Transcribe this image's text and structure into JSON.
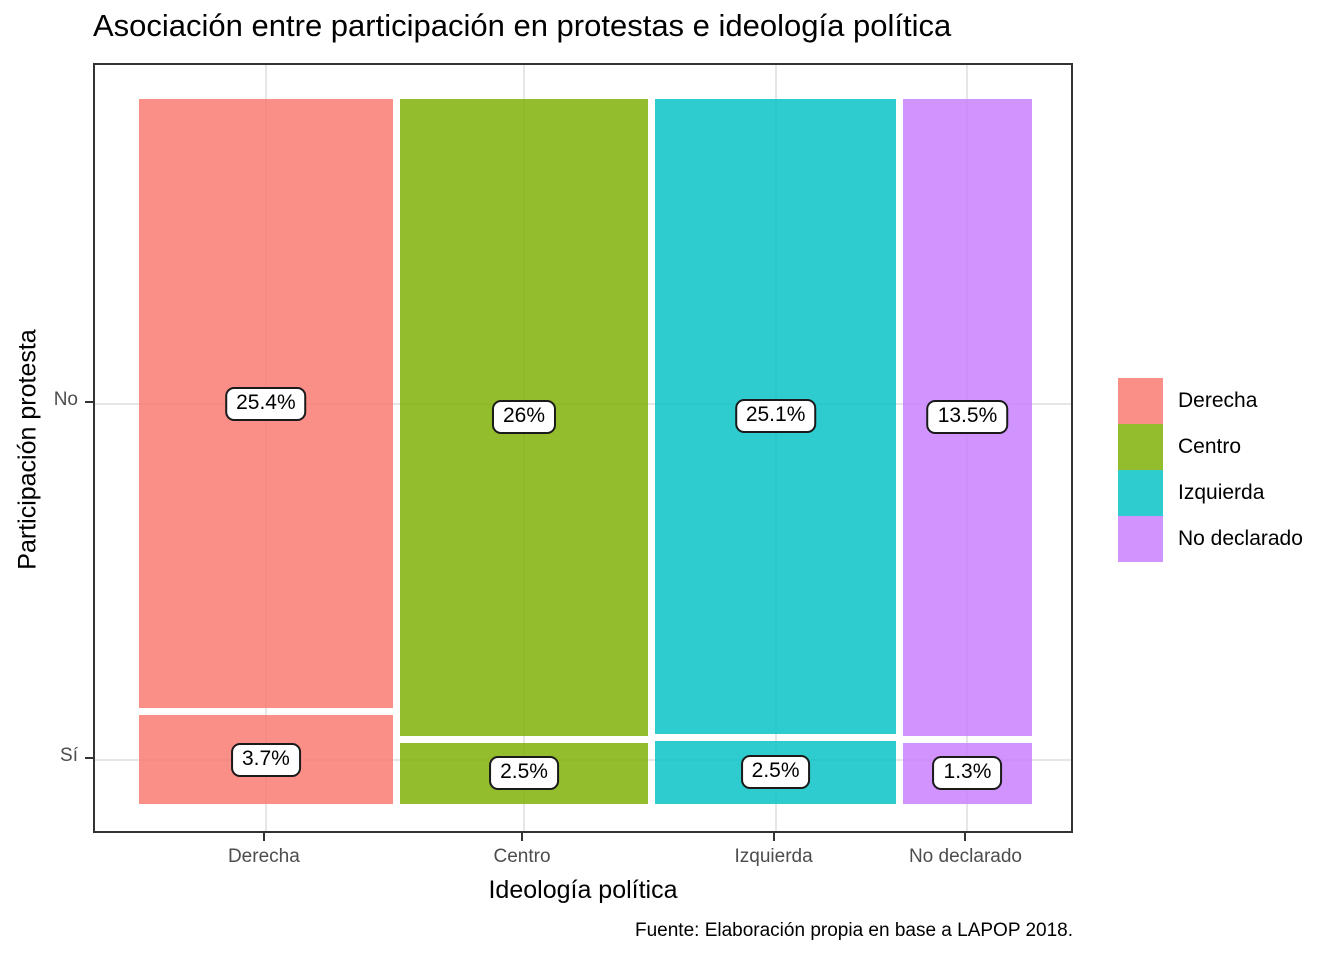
{
  "title": "Asociación entre participación en protestas e ideología política",
  "caption": "Fuente: Elaboración propia en base a LAPOP 2018.",
  "axes": {
    "x_title": "Ideología política",
    "y_title": "Participación protesta"
  },
  "chart_data": {
    "type": "mosaic",
    "title": "Asociación entre participación en protestas e ideología política",
    "xlabel": "Ideología política",
    "ylabel": "Participación protesta",
    "x_categories": [
      "Derecha",
      "Centro",
      "Izquierda",
      "No declarado"
    ],
    "y_categories": [
      "No",
      "Sí"
    ],
    "columns": [
      {
        "category": "Derecha",
        "segments": [
          {
            "row": "No",
            "pct": 25.4,
            "label": "25.4%"
          },
          {
            "row": "Sí",
            "pct": 3.7,
            "label": "3.7%"
          }
        ]
      },
      {
        "category": "Centro",
        "segments": [
          {
            "row": "No",
            "pct": 26.0,
            "label": "26%"
          },
          {
            "row": "Sí",
            "pct": 2.5,
            "label": "2.5%"
          }
        ]
      },
      {
        "category": "Izquierda",
        "segments": [
          {
            "row": "No",
            "pct": 25.1,
            "label": "25.1%"
          },
          {
            "row": "Sí",
            "pct": 2.5,
            "label": "2.5%"
          }
        ]
      },
      {
        "category": "No declarado",
        "segments": [
          {
            "row": "No",
            "pct": 13.5,
            "label": "13.5%"
          },
          {
            "row": "Sí",
            "pct": 1.3,
            "label": "1.3%"
          }
        ]
      }
    ],
    "fill_alpha": 0.82,
    "colors": {
      "Derecha": "#F8766D",
      "Centro": "#7CAE00",
      "Izquierda": "#00BFC4",
      "No declarado": "#C77CFF"
    },
    "legend": {
      "position": "right",
      "items": [
        {
          "label": "Derecha",
          "color": "#F8766D"
        },
        {
          "label": "Centro",
          "color": "#7CAE00"
        },
        {
          "label": "Izquierda",
          "color": "#00BFC4"
        },
        {
          "label": "No declarado",
          "color": "#C77CFF"
        }
      ]
    },
    "grid": "major-light-gray-on-white",
    "panel_border": "#333333"
  }
}
